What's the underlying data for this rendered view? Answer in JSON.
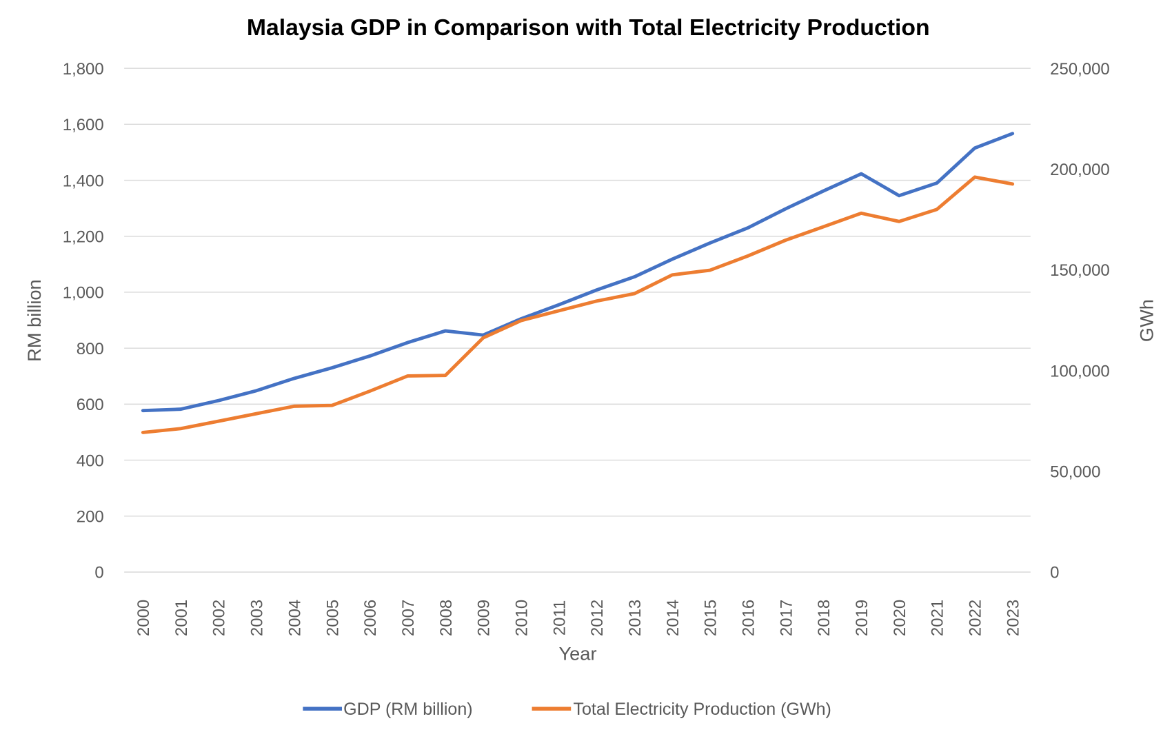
{
  "chart_data": {
    "type": "line",
    "title": "Malaysia GDP in Comparison with Total Electricity Production",
    "xlabel": "Year",
    "ylabel": "RM billion",
    "y2label": "GWh",
    "ylim": [
      0,
      1800
    ],
    "y2lim": [
      0,
      250000
    ],
    "yticks": [
      "0",
      "200",
      "400",
      "600",
      "800",
      "1,000",
      "1,200",
      "1,400",
      "1,600",
      "1,800"
    ],
    "y2ticks": [
      "0",
      "50,000",
      "100,000",
      "150,000",
      "200,000",
      "250,000"
    ],
    "grid": true,
    "legend_position": "bottom",
    "x": [
      "2000",
      "2001",
      "2002",
      "2003",
      "2004",
      "2005",
      "2006",
      "2007",
      "2008",
      "2009",
      "2010",
      "2011",
      "2012",
      "2013",
      "2014",
      "2015",
      "2016",
      "2017",
      "2018",
      "2019",
      "2020",
      "2021",
      "2022",
      "2023"
    ],
    "series": [
      {
        "name": "GDP (RM billion)",
        "axis": "left",
        "color": "#4472C4",
        "values": [
          577,
          582,
          613,
          648,
          692,
          730,
          772,
          820,
          862,
          847,
          905,
          955,
          1008,
          1055,
          1118,
          1176,
          1230,
          1298,
          1362,
          1423,
          1345,
          1390,
          1515,
          1567
        ]
      },
      {
        "name": "Total Electricity Production (GWh)",
        "axis": "right",
        "color": "#ED7D31",
        "values": [
          69300,
          71200,
          74900,
          78600,
          82300,
          82700,
          89800,
          97300,
          97600,
          116250,
          124800,
          129700,
          134500,
          138200,
          147500,
          149800,
          156900,
          164700,
          171400,
          178100,
          174000,
          180000,
          196000,
          192600
        ]
      }
    ]
  }
}
